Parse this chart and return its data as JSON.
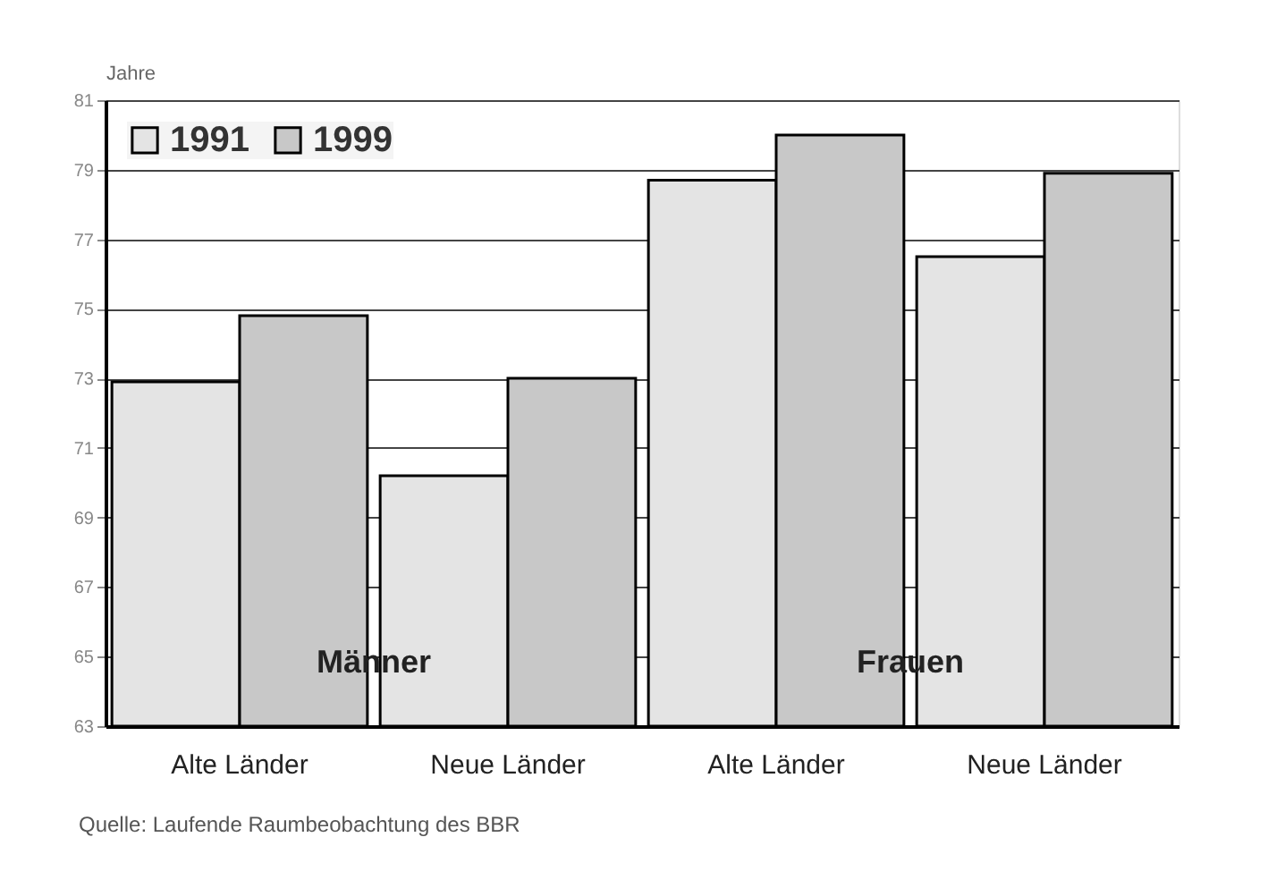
{
  "chart_data": {
    "type": "bar",
    "ylabel": "Jahre",
    "categories": [
      "Alte Länder",
      "Neue Länder",
      "Alte Länder",
      "Neue Länder"
    ],
    "series": [
      {
        "name": "1991",
        "color": "#e4e4e4",
        "values": [
          72.9,
          70.2,
          78.7,
          76.5
        ]
      },
      {
        "name": "1999",
        "color": "#c8c8c8",
        "values": [
          74.8,
          73.0,
          80.0,
          78.9
        ]
      }
    ],
    "ylim": [
      63,
      81
    ],
    "yticks": [
      63,
      65,
      67,
      69,
      71,
      73,
      75,
      77,
      79,
      81
    ],
    "grid": "y",
    "legend": "top left",
    "annotations": [
      "Männer",
      "Frauen",
      "Quelle: Laufende Raumbeobachtung des BBR"
    ]
  }
}
